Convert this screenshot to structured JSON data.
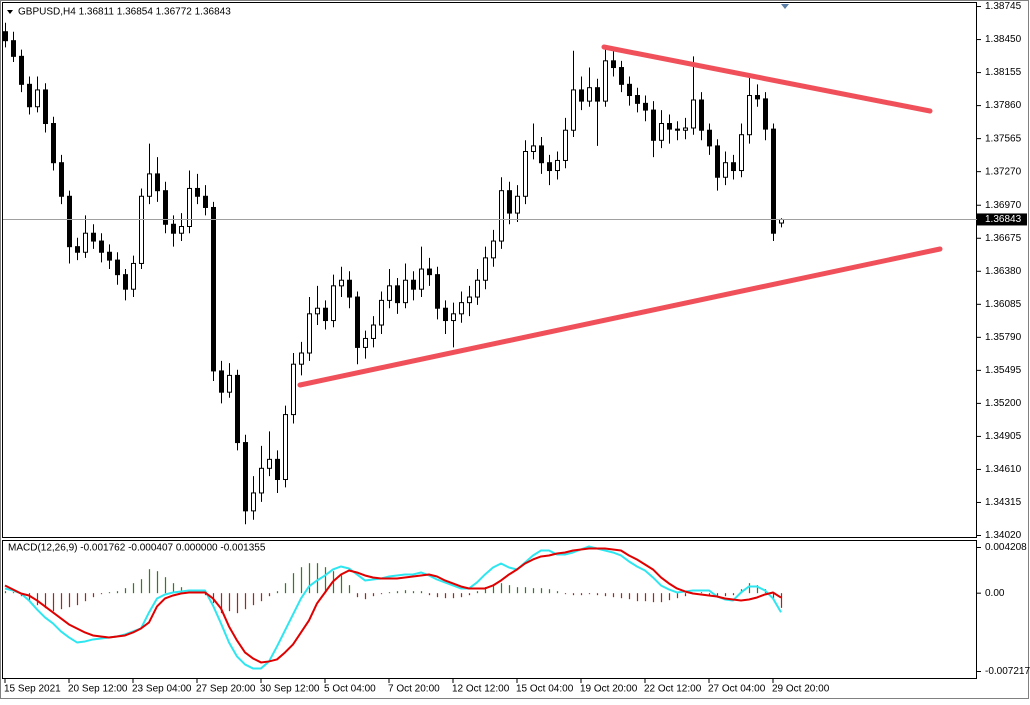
{
  "chart_data": [
    {
      "type": "candlestick",
      "title": "GBPUSD,H4  1.36811 1.36854 1.36772 1.36843",
      "candle_color": "#000000",
      "bull_fill": "#ffffff",
      "price_line_color": "#a0a0a0",
      "grid": false,
      "ylim": [
        1.34002,
        1.38781
      ],
      "yticks": [
        {
          "value": 1.3402,
          "label": "1.34020"
        },
        1.34315,
        {
          "value": 1.3461,
          "label": "1.34610"
        },
        1.34905,
        {
          "value": 1.352,
          "label": "1.35200"
        },
        1.35495,
        {
          "value": 1.3579,
          "label": "1.35790"
        },
        1.36085,
        {
          "value": 1.3638,
          "label": "1.36380"
        },
        1.36675,
        {
          "value": 1.3697,
          "label": "1.36970"
        },
        {
          "value": 1.3727,
          "label": "1.37270"
        },
        1.37565,
        {
          "value": 1.3786,
          "label": "1.37860"
        },
        1.38155,
        {
          "value": 1.3845,
          "label": "1.38450"
        },
        1.38745
      ],
      "ohlc": [
        [
          1.3852,
          1.386,
          1.3838,
          1.3844
        ],
        [
          1.3844,
          1.3852,
          1.3825,
          1.383
        ],
        [
          1.383,
          1.3836,
          1.3798,
          1.3805
        ],
        [
          1.3805,
          1.3812,
          1.3778,
          1.3785
        ],
        [
          1.3785,
          1.3812,
          1.378,
          1.38
        ],
        [
          1.38,
          1.3806,
          1.3762,
          1.377
        ],
        [
          1.377,
          1.3776,
          1.3728,
          1.3735
        ],
        [
          1.3735,
          1.3742,
          1.3698,
          1.3705
        ],
        [
          1.3705,
          1.371,
          1.3645,
          1.366
        ],
        [
          1.366,
          1.3668,
          1.3648,
          1.3655
        ],
        [
          1.3655,
          1.3688,
          1.365,
          1.3672
        ],
        [
          1.3672,
          1.368,
          1.3658,
          1.3665
        ],
        [
          1.3665,
          1.3672,
          1.3646,
          1.3655
        ],
        [
          1.3655,
          1.3662,
          1.364,
          1.3648
        ],
        [
          1.3648,
          1.3655,
          1.3626,
          1.3635
        ],
        [
          1.3635,
          1.364,
          1.3612,
          1.3622
        ],
        [
          1.3622,
          1.3652,
          1.3615,
          1.3645
        ],
        [
          1.3645,
          1.3712,
          1.364,
          1.3705
        ],
        [
          1.3705,
          1.3752,
          1.3698,
          1.3725
        ],
        [
          1.3725,
          1.374,
          1.37,
          1.371
        ],
        [
          1.371,
          1.3718,
          1.3672,
          1.368
        ],
        [
          1.368,
          1.3688,
          1.366,
          1.3672
        ],
        [
          1.3672,
          1.369,
          1.3665,
          1.3678
        ],
        [
          1.3678,
          1.3728,
          1.3672,
          1.3712
        ],
        [
          1.3712,
          1.3725,
          1.3698,
          1.3705
        ],
        [
          1.3705,
          1.3715,
          1.3688,
          1.3695
        ],
        [
          1.3695,
          1.37,
          1.354,
          1.3549
        ],
        [
          1.3549,
          1.3558,
          1.352,
          1.353
        ],
        [
          1.353,
          1.3556,
          1.3525,
          1.3545
        ],
        [
          1.3545,
          1.355,
          1.3478,
          1.3485
        ],
        [
          1.3485,
          1.3492,
          1.3412,
          1.3424
        ],
        [
          1.3424,
          1.3455,
          1.3416,
          1.344
        ],
        [
          1.344,
          1.3482,
          1.3432,
          1.3462
        ],
        [
          1.3462,
          1.3495,
          1.3455,
          1.347
        ],
        [
          1.347,
          1.3478,
          1.344,
          1.3452
        ],
        [
          1.3452,
          1.3518,
          1.3445,
          1.351
        ],
        [
          1.351,
          1.3565,
          1.3502,
          1.3555
        ],
        [
          1.3555,
          1.3575,
          1.3545,
          1.3565
        ],
        [
          1.3565,
          1.3615,
          1.3558,
          1.36
        ],
        [
          1.36,
          1.3625,
          1.359,
          1.3605
        ],
        [
          1.3605,
          1.3612,
          1.3586,
          1.3594
        ],
        [
          1.3594,
          1.3635,
          1.3588,
          1.3625
        ],
        [
          1.3625,
          1.3642,
          1.3615,
          1.363
        ],
        [
          1.363,
          1.3638,
          1.3605,
          1.3615
        ],
        [
          1.3615,
          1.362,
          1.3555,
          1.357
        ],
        [
          1.357,
          1.3585,
          1.356,
          1.3578
        ],
        [
          1.3578,
          1.3598,
          1.357,
          1.359
        ],
        [
          1.359,
          1.362,
          1.3582,
          1.3612
        ],
        [
          1.3612,
          1.364,
          1.3605,
          1.3625
        ],
        [
          1.3625,
          1.3632,
          1.36,
          1.361
        ],
        [
          1.361,
          1.3645,
          1.3605,
          1.363
        ],
        [
          1.363,
          1.3638,
          1.3612,
          1.3622
        ],
        [
          1.3622,
          1.366,
          1.3615,
          1.364
        ],
        [
          1.364,
          1.365,
          1.3625,
          1.3635
        ],
        [
          1.3635,
          1.3642,
          1.3595,
          1.3605
        ],
        [
          1.3605,
          1.3612,
          1.3582,
          1.3594
        ],
        [
          1.3594,
          1.361,
          1.357,
          1.36
        ],
        [
          1.36,
          1.362,
          1.3592,
          1.361
        ],
        [
          1.361,
          1.3625,
          1.3598,
          1.3615
        ],
        [
          1.3615,
          1.364,
          1.3608,
          1.363
        ],
        [
          1.363,
          1.366,
          1.3622,
          1.365
        ],
        [
          1.365,
          1.3675,
          1.3642,
          1.3665
        ],
        [
          1.3665,
          1.3722,
          1.3658,
          1.371
        ],
        [
          1.371,
          1.3718,
          1.368,
          1.369
        ],
        [
          1.369,
          1.3715,
          1.3682,
          1.3705
        ],
        [
          1.3705,
          1.3755,
          1.3698,
          1.3745
        ],
        [
          1.3745,
          1.377,
          1.3738,
          1.375
        ],
        [
          1.375,
          1.3758,
          1.3725,
          1.3735
        ],
        [
          1.3735,
          1.3742,
          1.3715,
          1.3728
        ],
        [
          1.3728,
          1.3745,
          1.372,
          1.3737
        ],
        [
          1.3737,
          1.3775,
          1.373,
          1.3764
        ],
        [
          1.3764,
          1.3835,
          1.3758,
          1.38
        ],
        [
          1.38,
          1.3812,
          1.3782,
          1.379
        ],
        [
          1.379,
          1.382,
          1.3785,
          1.3802
        ],
        [
          1.3802,
          1.381,
          1.375,
          1.379
        ],
        [
          1.379,
          1.3838,
          1.3785,
          1.3826
        ],
        [
          1.3826,
          1.3835,
          1.3812,
          1.382
        ],
        [
          1.382,
          1.3826,
          1.3798,
          1.3805
        ],
        [
          1.3805,
          1.3812,
          1.3786,
          1.3795
        ],
        [
          1.3795,
          1.3802,
          1.378,
          1.3788
        ],
        [
          1.3788,
          1.3795,
          1.3772,
          1.3782
        ],
        [
          1.3782,
          1.379,
          1.374,
          1.3755
        ],
        [
          1.3755,
          1.3782,
          1.3748,
          1.377
        ],
        [
          1.377,
          1.3778,
          1.3752,
          1.3765
        ],
        [
          1.3765,
          1.3772,
          1.3755,
          1.3764
        ],
        [
          1.3764,
          1.3775,
          1.3756,
          1.3766
        ],
        [
          1.3766,
          1.383,
          1.376,
          1.3791
        ],
        [
          1.3791,
          1.3798,
          1.3755,
          1.3764
        ],
        [
          1.3764,
          1.377,
          1.3742,
          1.375
        ],
        [
          1.375,
          1.3756,
          1.371,
          1.3722
        ],
        [
          1.3722,
          1.3745,
          1.3715,
          1.3735
        ],
        [
          1.3735,
          1.3742,
          1.372,
          1.3728
        ],
        [
          1.3728,
          1.377,
          1.3722,
          1.376
        ],
        [
          1.376,
          1.3812,
          1.3752,
          1.3795
        ],
        [
          1.3795,
          1.3805,
          1.3785,
          1.3792
        ],
        [
          1.3792,
          1.3798,
          1.3755,
          1.3765
        ],
        [
          1.3765,
          1.377,
          1.3665,
          1.3672
        ],
        [
          1.36811,
          1.36854,
          1.36772,
          1.36843
        ]
      ]
    },
    {
      "type": "macd",
      "title": "MACD(12,26,9) -0.001762 -0.000407 0.000000 -0.001355",
      "ylim": [
        -0.007862,
        0.004853
      ],
      "yticks": [
        -0.007217,
        {
          "value": 0,
          "label": "0.00"
        },
        0.004208
      ],
      "categories": [
        "15 Sep 2021",
        null,
        null,
        null,
        null,
        null,
        null,
        null,
        "20 Sep 12:00",
        null,
        null,
        null,
        null,
        null,
        null,
        null,
        "23 Sep 04:00",
        null,
        null,
        null,
        null,
        null,
        null,
        null,
        "27 Sep 20:00",
        null,
        null,
        null,
        null,
        null,
        null,
        null,
        "30 Sep 12:00",
        null,
        null,
        null,
        null,
        null,
        null,
        null,
        "5 Oct 04:00",
        null,
        null,
        null,
        null,
        null,
        null,
        null,
        "7 Oct 20:00",
        null,
        null,
        null,
        null,
        null,
        null,
        null,
        "12 Oct 12:00",
        null,
        null,
        null,
        null,
        null,
        null,
        null,
        "15 Oct 04:00",
        null,
        null,
        null,
        null,
        null,
        null,
        null,
        "19 Oct 20:00",
        null,
        null,
        null,
        null,
        null,
        null,
        null,
        "22 Oct 12:00",
        null,
        null,
        null,
        null,
        null,
        null,
        null,
        "27 Oct 04:00",
        null,
        null,
        null,
        null,
        null,
        null,
        null,
        "29 Oct 20:00",
        null
      ],
      "histogram": {
        "up_color": "#2f7d1f",
        "down_color": "#b02020",
        "values": [
          0.000184,
          9.2e-05,
          -0.000276,
          -0.000737,
          -0.001105,
          -0.001382,
          -0.001658,
          -0.001474,
          -0.001289,
          -0.001105,
          -0.000737,
          -0.000368,
          -9.2e-05,
          9.2e-05,
          0.000184,
          0.000461,
          0.000921,
          0.001289,
          0.00221,
          0.002026,
          0.001474,
          0.000921,
          0.000553,
          0.000276,
          0.000184,
          -0.000184,
          -0.000921,
          -0.001842,
          -0.001658,
          -0.001842,
          -0.001474,
          -0.001105,
          -0.000737,
          -0.000276,
          0.000184,
          0.000921,
          0.001842,
          0.002395,
          0.002763,
          0.002763,
          0.002395,
          0.002026,
          0.001658,
          0.000737,
          -0.000368,
          -0.000553,
          -0.000276,
          -9.2e-05,
          9.2e-05,
          0.000184,
          0.000276,
          0.000184,
          0.000184,
          -0.000184,
          -0.000368,
          -0.000461,
          -0.000461,
          -0.000368,
          -0.000184,
          0.000184,
          0.000553,
          0.000737,
          0.000921,
          0.000737,
          0.000553,
          0.000553,
          0.000461,
          0.000461,
          0.000368,
          0.000184,
          -9.2e-05,
          -0.000184,
          -0.000184,
          -9.2e-05,
          -0.000184,
          -0.000276,
          -0.000368,
          -0.000461,
          -0.000553,
          -0.000737,
          -0.000737,
          -0.000829,
          -0.000829,
          -0.000645,
          -0.000461,
          -0.000276,
          -9.2e-05,
          9.2e-05,
          -0.000184,
          -0.000368,
          -0.000276,
          -0.000184,
          0.000368,
          0.000921,
          0.000737,
          0.000368,
          -0.000553,
          -0.001355
        ]
      },
      "main_line": {
        "color": "#2ee6f0",
        "values": [
          0.000433,
          0.000249,
          -2.8e-05,
          -0.000672,
          -0.001501,
          -0.002238,
          -0.002791,
          -0.003527,
          -0.00408,
          -0.004541,
          -0.004448,
          -0.004264,
          -0.004172,
          -0.00408,
          -0.003988,
          -0.003804,
          -0.003527,
          -0.003251,
          -0.001778,
          -0.000488,
          -0.00012,
          6.4e-05,
          0.000157,
          0.000249,
          0.000249,
          0.000249,
          -0.001133,
          -0.002791,
          -0.004541,
          -0.00583,
          -0.006567,
          -0.006935,
          -0.006935,
          -0.00629,
          -0.004909,
          -0.003435,
          -0.001962,
          -0.000488,
          0.000617,
          0.00117,
          0.00163,
          0.002183,
          0.002459,
          0.002275,
          0.001722,
          0.00117,
          0.001262,
          0.001354,
          0.001538,
          0.00163,
          0.001722,
          0.001722,
          0.001906,
          0.00163,
          0.001262,
          0.000985,
          0.000709,
          0.000433,
          0.000433,
          0.000985,
          0.001722,
          0.002367,
          0.002735,
          0.002367,
          0.002183,
          0.002827,
          0.003472,
          0.003933,
          0.003933,
          0.003564,
          0.003564,
          0.003748,
          0.004025,
          0.004301,
          0.004117,
          0.003933,
          0.003748,
          0.003472,
          0.00292,
          0.002459,
          0.002091,
          0.001446,
          0.000709,
          0.000341,
          6.4e-05,
          0.000157,
          0.000249,
          0.000249,
          0.000249,
          -0.000304,
          -0.00058,
          -0.000672,
          6.4e-05,
          0.000617,
          0.000617,
          0.000249,
          -0.000488,
          -0.001762
        ]
      },
      "signal_line": {
        "color": "#e00000",
        "values": [
          0.000709,
          0.000341,
          -2.8e-05,
          -0.000212,
          -0.000672,
          -0.001225,
          -0.001778,
          -0.00233,
          -0.002883,
          -0.003251,
          -0.00362,
          -0.003896,
          -0.003988,
          -0.00408,
          -0.003988,
          -0.003896,
          -0.00362,
          -0.003251,
          -0.002699,
          -0.001225,
          -0.000488,
          -0.000212,
          -2.8e-05,
          6.4e-05,
          6.4e-05,
          6.4e-05,
          -0.000488,
          -0.001409,
          -0.003067,
          -0.004356,
          -0.005462,
          -0.006014,
          -0.006383,
          -0.00629,
          -0.006106,
          -0.005462,
          -0.004725,
          -0.00362,
          -0.002514,
          -0.000949,
          6.4e-05,
          0.001078,
          0.001722,
          0.002091,
          0.001906,
          0.00163,
          0.001446,
          0.001354,
          0.001354,
          0.001354,
          0.001446,
          0.001538,
          0.00163,
          0.001722,
          0.001538,
          0.00117,
          0.000893,
          0.000617,
          0.000433,
          0.000433,
          0.000433,
          0.000709,
          0.00117,
          0.001722,
          0.002183,
          0.002735,
          0.003104,
          0.00338,
          0.003472,
          0.003656,
          0.003748,
          0.003933,
          0.004025,
          0.004117,
          0.004117,
          0.004117,
          0.004025,
          0.003933,
          0.003472,
          0.003104,
          0.002643,
          0.002183,
          0.001446,
          0.000893,
          0.000433,
          0.000157,
          -2.8e-05,
          -0.00012,
          -0.000212,
          -0.000304,
          -0.000488,
          -0.00058,
          -0.000672,
          -0.00058,
          -0.000396,
          -0.00012,
          6.4e-05,
          -0.000407
        ]
      }
    }
  ]
}
